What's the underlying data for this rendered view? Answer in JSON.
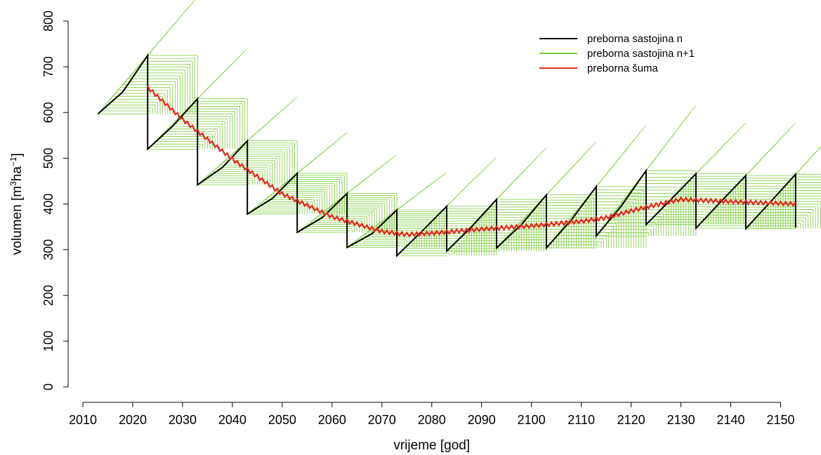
{
  "chart_data": {
    "type": "line",
    "xlabel": "vrijeme [god]",
    "ylabel_parts": [
      "volumen [m",
      "3",
      "ha",
      "−1",
      "]"
    ],
    "xlim": [
      2010,
      2155
    ],
    "ylim": [
      0,
      800
    ],
    "x_ticks": [
      2010,
      2020,
      2030,
      2040,
      2050,
      2060,
      2070,
      2080,
      2090,
      2100,
      2110,
      2120,
      2130,
      2140,
      2150
    ],
    "y_ticks": [
      0,
      100,
      200,
      300,
      400,
      500,
      600,
      700,
      800
    ],
    "grid": false,
    "legend_position": "top-right",
    "colors": {
      "stand_n": "#000000",
      "stand_n1": "#7ccd3a",
      "forest": "#e8241c"
    },
    "series": [
      {
        "name": "preborna sastojina n",
        "color": "#000000",
        "x": [
          2013,
          2018,
          2023,
          2023,
          2028,
          2033,
          2033,
          2038,
          2043,
          2043,
          2048,
          2053,
          2053,
          2058,
          2063,
          2063,
          2068,
          2073,
          2073,
          2078,
          2083,
          2083,
          2088,
          2093,
          2093,
          2098,
          2103,
          2103,
          2108,
          2113,
          2113,
          2118,
          2123,
          2123,
          2128,
          2133,
          2133,
          2138,
          2143,
          2143,
          2148,
          2153,
          2153
        ],
        "y": [
          597,
          645,
          725,
          520,
          570,
          630,
          442,
          480,
          538,
          378,
          412,
          467,
          338,
          370,
          423,
          305,
          335,
          387,
          287,
          340,
          395,
          297,
          350,
          410,
          304,
          355,
          420,
          304,
          365,
          438,
          330,
          395,
          473,
          355,
          410,
          466,
          347,
          405,
          462,
          346,
          405,
          465,
          348
        ]
      },
      {
        "name": "preborna sastojina n+1",
        "color": "#7ccd3a",
        "segments": [
          {
            "x0": 2013,
            "x1": 2023,
            "y0": 597,
            "y1": 725,
            "xd": 2023
          },
          {
            "x0": 2023,
            "x1": 2033,
            "y0": 520,
            "y1": 630,
            "xd": 2033
          },
          {
            "x0": 2033,
            "x1": 2043,
            "y0": 442,
            "y1": 538,
            "xd": 2043
          },
          {
            "x0": 2043,
            "x1": 2053,
            "y0": 378,
            "y1": 467,
            "xd": 2053
          },
          {
            "x0": 2053,
            "x1": 2063,
            "y0": 338,
            "y1": 423,
            "xd": 2063
          },
          {
            "x0": 2063,
            "x1": 2073,
            "y0": 305,
            "y1": 387,
            "xd": 2073
          },
          {
            "x0": 2073,
            "x1": 2083,
            "y0": 287,
            "y1": 395,
            "xd": 2083
          },
          {
            "x0": 2083,
            "x1": 2093,
            "y0": 297,
            "y1": 410,
            "xd": 2093
          },
          {
            "x0": 2093,
            "x1": 2103,
            "y0": 304,
            "y1": 420,
            "xd": 2103
          },
          {
            "x0": 2103,
            "x1": 2113,
            "y0": 304,
            "y1": 438,
            "xd": 2113
          },
          {
            "x0": 2113,
            "x1": 2123,
            "y0": 330,
            "y1": 473,
            "xd": 2123
          },
          {
            "x0": 2123,
            "x1": 2133,
            "y0": 355,
            "y1": 466,
            "xd": 2133
          },
          {
            "x0": 2133,
            "x1": 2143,
            "y0": 347,
            "y1": 462,
            "xd": 2143
          },
          {
            "x0": 2143,
            "x1": 2153,
            "y0": 346,
            "y1": 465,
            "xd": 2153
          }
        ]
      },
      {
        "name": "preborna šuma",
        "color": "#e8241c",
        "x": [
          2023,
          2030,
          2040,
          2050,
          2060,
          2070,
          2075,
          2080,
          2090,
          2100,
          2110,
          2115,
          2120,
          2125,
          2130,
          2140,
          2153
        ],
        "y": [
          655,
          585,
          498,
          422,
          372,
          340,
          333,
          336,
          345,
          352,
          362,
          370,
          385,
          398,
          410,
          405,
          400
        ]
      }
    ]
  }
}
